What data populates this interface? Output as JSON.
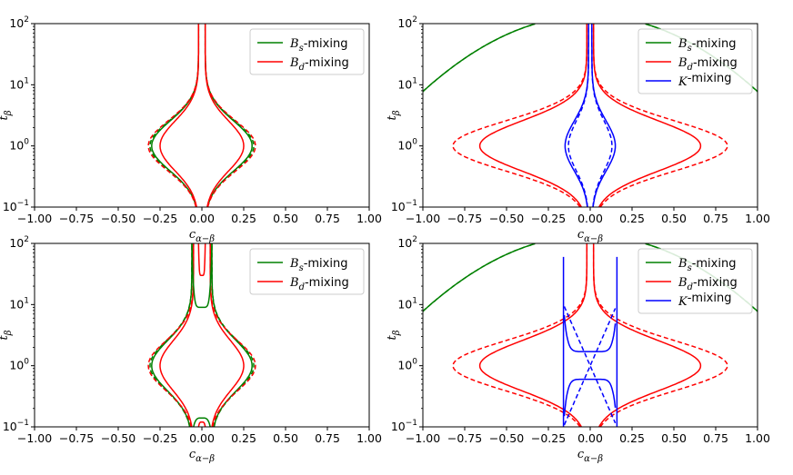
{
  "chart_data": [
    {
      "type": "line",
      "panel": "top-left",
      "xlabel": "cα−β",
      "ylabel": "tβ",
      "xlim": [
        -1.0,
        1.0
      ],
      "ylim": [
        0.1,
        100
      ],
      "yscale": "log",
      "xticks": [
        "−1.00",
        "−0.75",
        "−0.50",
        "−0.25",
        "0.00",
        "0.25",
        "0.50",
        "0.75",
        "1.00"
      ],
      "yticks": [
        "10−1",
        "100",
        "101",
        "102"
      ],
      "legend_position": "top-right",
      "legend": [
        {
          "name": "Bs-mixing",
          "color": "#008000"
        },
        {
          "name": "Bd-mixing",
          "color": "#ff0000"
        }
      ],
      "series": [
        {
          "name": "Bs-mixing",
          "style": "solid",
          "color": "#008000",
          "kind": "envelope",
          "w": 0.3,
          "waist": 0.02
        },
        {
          "name": "Bs-mixing",
          "style": "dashed",
          "color": "#008000",
          "kind": "envelope",
          "w": 0.31,
          "waist": 0.02
        },
        {
          "name": "Bd-mixing",
          "style": "solid",
          "color": "#ff0000",
          "kind": "envelope",
          "w": 0.25,
          "waist": 0.02
        },
        {
          "name": "Bd-mixing",
          "style": "dashed",
          "color": "#ff0000",
          "kind": "envelope",
          "w": 0.32,
          "waist": 0.02
        }
      ]
    },
    {
      "type": "line",
      "panel": "top-right",
      "xlabel": "cα−β",
      "ylabel": "tβ",
      "xlim": [
        -1.0,
        1.0
      ],
      "ylim": [
        0.1,
        100
      ],
      "yscale": "log",
      "xticks": [
        "−1.00",
        "−0.75",
        "−0.50",
        "−0.25",
        "0.00",
        "0.25",
        "0.50",
        "0.75",
        "1.00"
      ],
      "yticks": [
        "10−1",
        "100",
        "101",
        "102"
      ],
      "legend_position": "top-right",
      "legend": [
        {
          "name": "Bs-mixing",
          "color": "#008000"
        },
        {
          "name": "Bd-mixing",
          "color": "#ff0000"
        },
        {
          "name": "K-mixing",
          "color": "#0000ff"
        }
      ],
      "series": [
        {
          "name": "Bs-mixing",
          "style": "solid",
          "color": "#008000",
          "kind": "arc"
        },
        {
          "name": "Bs-mixing",
          "style": "dashed",
          "color": "#008000",
          "kind": "arc"
        },
        {
          "name": "Bd-mixing",
          "style": "solid",
          "color": "#ff0000",
          "kind": "envelope",
          "w": 0.66,
          "waist": 0.02
        },
        {
          "name": "Bd-mixing",
          "style": "dashed",
          "color": "#ff0000",
          "kind": "envelope",
          "w": 0.82,
          "waist": 0.02
        },
        {
          "name": "K-mixing",
          "style": "solid",
          "color": "#0000ff",
          "kind": "envelope",
          "w": 0.15,
          "waist": 0.01
        },
        {
          "name": "K-mixing",
          "style": "dashed",
          "color": "#0000ff",
          "kind": "envelope",
          "w": 0.13,
          "waist": 0.01
        }
      ]
    },
    {
      "type": "line",
      "panel": "bottom-left",
      "xlabel": "cα−β",
      "ylabel": "tβ",
      "xlim": [
        -1.0,
        1.0
      ],
      "ylim": [
        0.1,
        100
      ],
      "yscale": "log",
      "xticks": [
        "−1.00",
        "−0.75",
        "−0.50",
        "−0.25",
        "0.00",
        "0.25",
        "0.50",
        "0.75",
        "1.00"
      ],
      "yticks": [
        "10−1",
        "100",
        "101",
        "102"
      ],
      "legend_position": "top-right",
      "legend": [
        {
          "name": "Bs-mixing",
          "color": "#008000"
        },
        {
          "name": "Bd-mixing",
          "color": "#ff0000"
        }
      ],
      "series": [
        {
          "name": "Bs-mixing",
          "style": "solid",
          "color": "#008000",
          "kind": "envelope",
          "w": 0.3,
          "waist": 0.06
        },
        {
          "name": "Bs-mixing",
          "style": "dashed",
          "color": "#008000",
          "kind": "envelope",
          "w": 0.31,
          "waist": 0.06
        },
        {
          "name": "Bd-mixing",
          "style": "solid",
          "color": "#ff0000",
          "kind": "envelope",
          "w": 0.25,
          "waist": 0.05
        },
        {
          "name": "Bd-mixing",
          "style": "dashed",
          "color": "#ff0000",
          "kind": "envelope",
          "w": 0.32,
          "waist": 0.05
        },
        {
          "name": "Bs-mixing",
          "style": "solid",
          "color": "#008000",
          "kind": "inner",
          "xs": [
            -0.06,
            0.06
          ],
          "peak": 9
        },
        {
          "name": "Bs-mixing",
          "style": "solid",
          "color": "#008000",
          "kind": "innerLow",
          "xs": [
            -0.05,
            0.05
          ],
          "peak": 0.14
        },
        {
          "name": "Bd-mixing",
          "style": "solid",
          "color": "#ff0000",
          "kind": "inner",
          "xs": [
            -0.02,
            0.02
          ],
          "peak": 30
        },
        {
          "name": "Bd-mixing",
          "style": "solid",
          "color": "#ff0000",
          "kind": "innerLow",
          "xs": [
            -0.02,
            0.02
          ],
          "peak": 0.12
        }
      ]
    },
    {
      "type": "line",
      "panel": "bottom-right",
      "xlabel": "cα−β",
      "ylabel": "tβ",
      "xlim": [
        -1.0,
        1.0
      ],
      "ylim": [
        0.1,
        100
      ],
      "yscale": "log",
      "xticks": [
        "−1.00",
        "−0.75",
        "−0.50",
        "−0.25",
        "0.00",
        "0.25",
        "0.50",
        "0.75",
        "1.00"
      ],
      "yticks": [
        "10−1",
        "100",
        "101",
        "102"
      ],
      "legend_position": "top-right",
      "legend": [
        {
          "name": "Bs-mixing",
          "color": "#008000"
        },
        {
          "name": "Bd-mixing",
          "color": "#ff0000"
        },
        {
          "name": "K-mixing",
          "color": "#0000ff"
        }
      ],
      "series": [
        {
          "name": "Bs-mixing",
          "style": "solid",
          "color": "#008000",
          "kind": "arc"
        },
        {
          "name": "Bs-mixing",
          "style": "dashed",
          "color": "#008000",
          "kind": "arc"
        },
        {
          "name": "Bd-mixing",
          "style": "solid",
          "color": "#ff0000",
          "kind": "envelope",
          "w": 0.66,
          "waist": 0.02
        },
        {
          "name": "Bd-mixing",
          "style": "dashed",
          "color": "#ff0000",
          "kind": "envelope",
          "w": 0.82,
          "waist": 0.02
        },
        {
          "name": "K-mixing",
          "style": "solid",
          "color": "#0000ff",
          "kind": "kvertical",
          "x": 0.16
        },
        {
          "name": "K-mixing",
          "style": "solid",
          "color": "#0000ff",
          "kind": "kloop",
          "top": 1.7,
          "bottom": 0.6
        },
        {
          "name": "K-mixing",
          "style": "dashed",
          "color": "#0000ff",
          "kind": "kcross"
        }
      ]
    }
  ]
}
